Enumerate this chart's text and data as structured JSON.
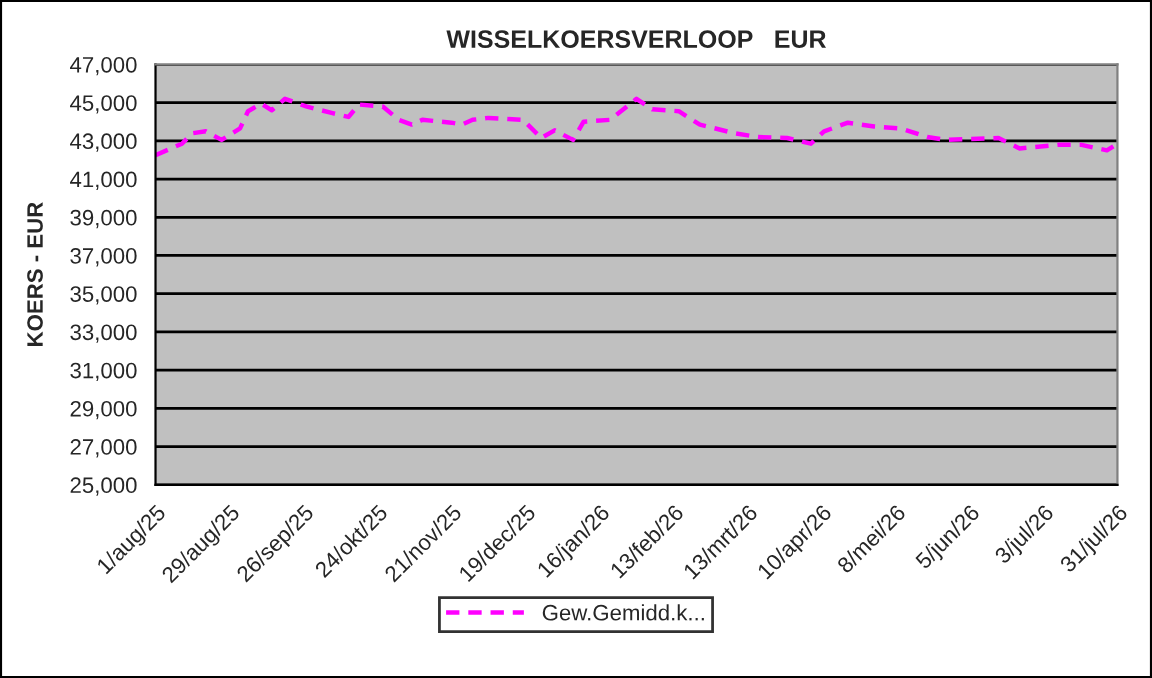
{
  "chart_data": {
    "type": "line",
    "title": "WISSELKOERSVERLOOP   EUR",
    "ylabel": "KOERS - EUR",
    "series": [
      {
        "name": "Gew.Gemidd.k...",
        "color": "#ff00ff",
        "line_style": "dashed",
        "marker": "none",
        "x": [
          "2025-08-01",
          "2025-08-11",
          "2025-08-15",
          "2025-08-20",
          "2025-08-26",
          "2025-09-02",
          "2025-09-05",
          "2025-09-10",
          "2025-09-14",
          "2025-09-19",
          "2025-09-27",
          "2025-10-07",
          "2025-10-13",
          "2025-10-17",
          "2025-10-26",
          "2025-11-01",
          "2025-11-06",
          "2025-11-10",
          "2025-11-21",
          "2025-11-25",
          "2025-11-29",
          "2025-12-05",
          "2025-12-18",
          "2025-12-25",
          "2025-12-30",
          "2026-01-06",
          "2026-01-10",
          "2026-01-20",
          "2026-01-30",
          "2026-02-05",
          "2026-02-15",
          "2026-02-23",
          "2026-03-08",
          "2026-03-17",
          "2026-03-28",
          "2026-04-06",
          "2026-04-11",
          "2026-04-20",
          "2026-04-30",
          "2026-05-10",
          "2026-05-20",
          "2026-05-27",
          "2026-06-16",
          "2026-06-24",
          "2026-07-09",
          "2026-07-17",
          "2026-07-27",
          "2026-07-31"
        ],
        "values": [
          42250,
          42850,
          43400,
          43500,
          43050,
          43650,
          44550,
          44950,
          44600,
          45200,
          44800,
          44450,
          44250,
          44900,
          44800,
          44100,
          43850,
          44100,
          43950,
          43850,
          44100,
          44200,
          44100,
          43150,
          43550,
          43050,
          44000,
          44100,
          45200,
          44650,
          44550,
          43850,
          43400,
          43200,
          43150,
          42850,
          43500,
          43950,
          43750,
          43650,
          43200,
          43050,
          43150,
          42600,
          42800,
          42800,
          42500,
          42850
        ]
      }
    ],
    "xlim": [
      "2025-08-01",
      "2026-07-31"
    ],
    "xticks": [
      {
        "value": "2025-08-01",
        "label": "1/aug/25"
      },
      {
        "value": "2025-08-29",
        "label": "29/aug/25"
      },
      {
        "value": "2025-09-26",
        "label": "26/sep/25"
      },
      {
        "value": "2025-10-24",
        "label": "24/okt/25"
      },
      {
        "value": "2025-11-21",
        "label": "21/nov/25"
      },
      {
        "value": "2025-12-19",
        "label": "19/dec/25"
      },
      {
        "value": "2026-01-16",
        "label": "16/jan/26"
      },
      {
        "value": "2026-02-13",
        "label": "13/feb/26"
      },
      {
        "value": "2026-03-13",
        "label": "13/mrt/26"
      },
      {
        "value": "2026-04-10",
        "label": "10/apr/26"
      },
      {
        "value": "2026-05-08",
        "label": "8/mei/26"
      },
      {
        "value": "2026-06-05",
        "label": "5/jun/26"
      },
      {
        "value": "2026-07-03",
        "label": "3/jul/26"
      },
      {
        "value": "2026-07-31",
        "label": "31/jul/26"
      }
    ],
    "ylim": [
      25000,
      47000
    ],
    "yticks": [
      {
        "value": 25000,
        "label": "25,000"
      },
      {
        "value": 27000,
        "label": "27,000"
      },
      {
        "value": 29000,
        "label": "29,000"
      },
      {
        "value": 31000,
        "label": "31,000"
      },
      {
        "value": 33000,
        "label": "33,000"
      },
      {
        "value": 35000,
        "label": "35,000"
      },
      {
        "value": 37000,
        "label": "37,000"
      },
      {
        "value": 39000,
        "label": "39,000"
      },
      {
        "value": 41000,
        "label": "41,000"
      },
      {
        "value": 43000,
        "label": "43,000"
      },
      {
        "value": 45000,
        "label": "45,000"
      },
      {
        "value": 47000,
        "label": "47,000"
      }
    ],
    "grid": "y",
    "legend": "bottom"
  }
}
